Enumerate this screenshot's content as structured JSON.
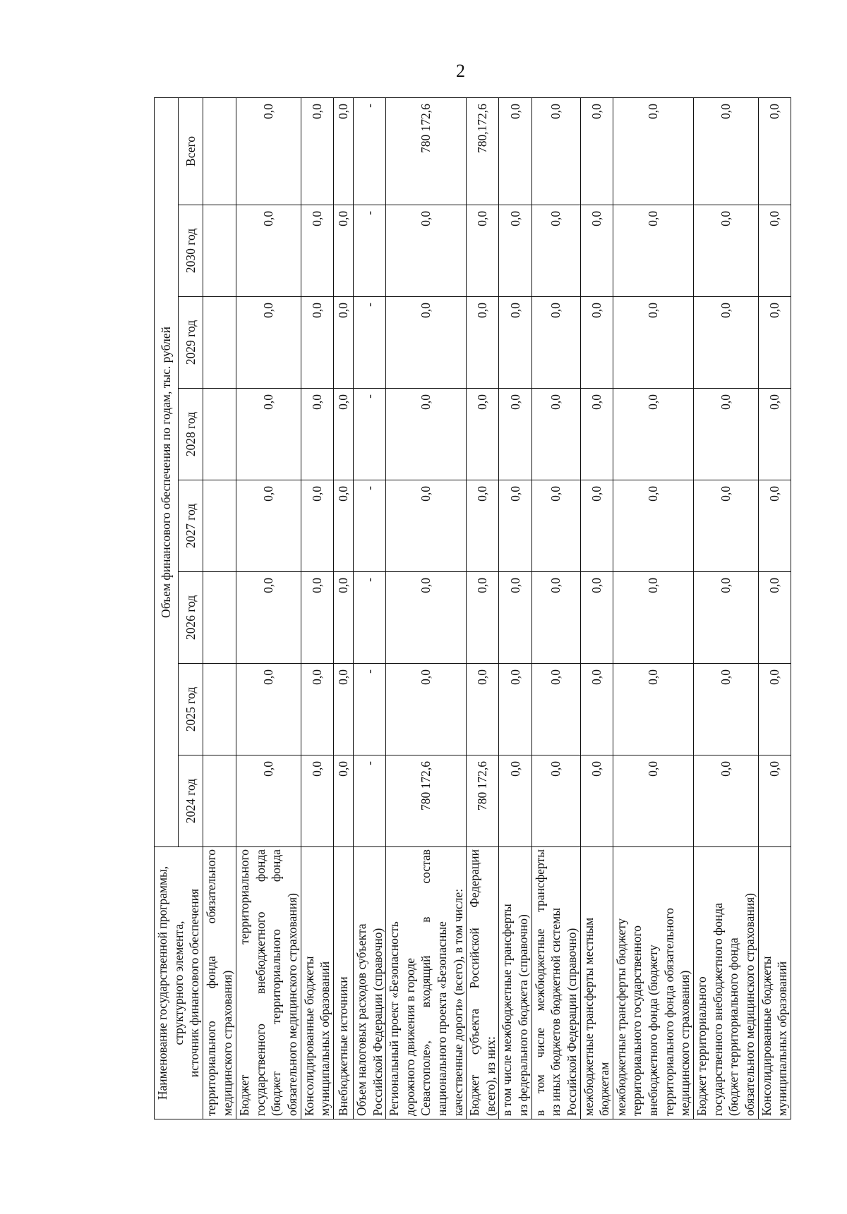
{
  "page_number": "2",
  "header": {
    "name_lines": [
      "Наименование государственной программы,",
      "структурного элемента,",
      "источник финансового обеспечения"
    ],
    "funding_title": "Объем финансового обеспечения по годам, тыс. рублей",
    "columns": [
      "2024 год",
      "2025 год",
      "2026 год",
      "2027 год",
      "2028 год",
      "2029 год",
      "2030 год",
      "Всего"
    ]
  },
  "rows": [
    {
      "name_lines": [
        "территориального фонда обязательного",
        "медицинского страхования)"
      ],
      "values": [
        "",
        "",
        "",
        "",
        "",
        "",
        "",
        ""
      ]
    },
    {
      "name_lines": [
        "Бюджет территориального",
        "государственного внебюджетного фонда",
        "(бюджет территориального фонда",
        "обязательного медицинского страхования)"
      ],
      "values": [
        "0,0",
        "0,0",
        "0,0",
        "0,0",
        "0,0",
        "0,0",
        "0,0",
        "0,0"
      ]
    },
    {
      "name_lines": [
        "Консолидированные бюджеты",
        "муниципальных образований"
      ],
      "values": [
        "0,0",
        "0,0",
        "0,0",
        "0,0",
        "0,0",
        "0,0",
        "0,0",
        "0,0"
      ]
    },
    {
      "name_lines": [
        "Внебюджетные источники"
      ],
      "values": [
        "0,0",
        "0,0",
        "0,0",
        "0,0",
        "0,0",
        "0,0",
        "0,0",
        "0,0"
      ]
    },
    {
      "name_lines": [
        "Объем налоговых расходов субъекта",
        "Российской Федерации (справочно)"
      ],
      "values": [
        "-",
        "-",
        "-",
        "-",
        "-",
        "-",
        "-",
        "-"
      ]
    },
    {
      "name_lines": [
        "Региональный проект «Безопасность",
        "дорожного движения в городе",
        "Севастополе», входящий в состав",
        "национального проекта «Безопасные",
        "качественные дороги» (всего), в том числе:"
      ],
      "values": [
        "780 172,6",
        "0,0",
        "0,0",
        "0,0",
        "0,0",
        "0,0",
        "0,0",
        "780 172,6"
      ]
    },
    {
      "name_lines": [
        "Бюджет субъекта Российской Федерации",
        "(всего), из них:"
      ],
      "values": [
        "780 172,6",
        "0,0",
        "0,0",
        "0,0",
        "0,0",
        "0,0",
        "0,0",
        "780,172,6"
      ]
    },
    {
      "name_lines": [
        "в том числе межбюджетные трансферты",
        "из федерального бюджета (справочно)"
      ],
      "values": [
        "0,0",
        "0,0",
        "0,0",
        "0,0",
        "0,0",
        "0,0",
        "0,0",
        "0,0"
      ]
    },
    {
      "name_lines": [
        "в том числе межбюджетные трансферты",
        "из иных бюджетов бюджетной системы",
        "Российской Федерации (справочно)"
      ],
      "values": [
        "0,0",
        "0,0",
        "0,0",
        "0,0",
        "0,0",
        "0,0",
        "0,0",
        "0,0"
      ]
    },
    {
      "name_lines": [
        "межбюджетные трансферты местным",
        "бюджетам"
      ],
      "values": [
        "0,0",
        "0,0",
        "0,0",
        "0,0",
        "0,0",
        "0,0",
        "0,0",
        "0,0"
      ]
    },
    {
      "name_lines": [
        "межбюджетные трансферты бюджету",
        "территориального государственного",
        "внебюджетного фонда (бюджету",
        "территориального фонда обязательного",
        "медицинского страхования)"
      ],
      "values": [
        "0,0",
        "0,0",
        "0,0",
        "0,0",
        "0,0",
        "0,0",
        "0,0",
        "0,0"
      ]
    },
    {
      "name_lines": [
        "Бюджет территориального",
        "государственного внебюджетного фонда",
        "(бюджет территориального фонда",
        "обязательного медицинского страхования)"
      ],
      "values": [
        "0,0",
        "0,0",
        "0,0",
        "0,0",
        "0,0",
        "0,0",
        "0,0",
        "0,0"
      ]
    },
    {
      "name_lines": [
        "Консолидированные бюджеты",
        "муниципальных образований"
      ],
      "values": [
        "0,0",
        "0,0",
        "0,0",
        "0,0",
        "0,0",
        "0,0",
        "0,0",
        "0,0"
      ]
    }
  ]
}
